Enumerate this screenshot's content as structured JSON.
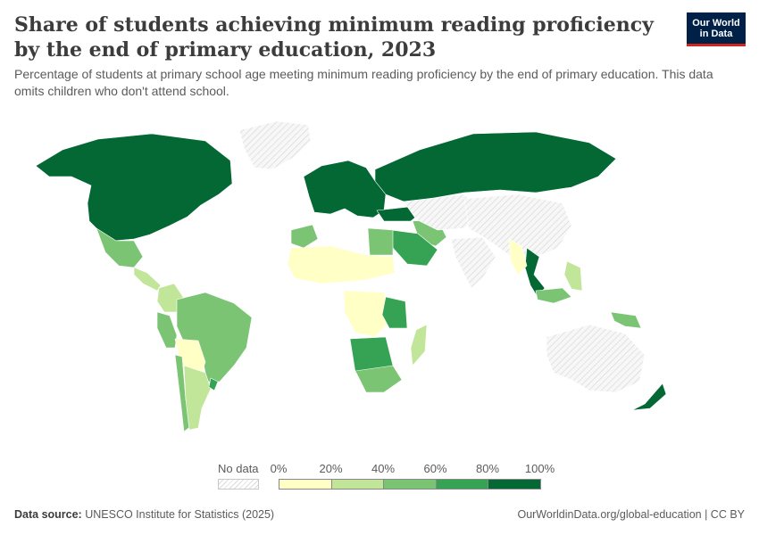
{
  "title": "Share of students achieving minimum reading proficiency by the end of primary education, 2023",
  "subtitle": "Percentage of students at primary school age meeting minimum reading proficiency by the end of primary education. This data omits children who don't attend school.",
  "logo": {
    "line1": "Our World",
    "line2": "in Data"
  },
  "legend": {
    "nodata_label": "No data",
    "ticks": [
      "0%",
      "20%",
      "40%",
      "60%",
      "80%",
      "100%"
    ],
    "bins": [
      {
        "from": 0,
        "to": 20,
        "color": "#ffffc6"
      },
      {
        "from": 20,
        "to": 40,
        "color": "#c2e699"
      },
      {
        "from": 40,
        "to": 60,
        "color": "#7ac474"
      },
      {
        "from": 60,
        "to": 80,
        "color": "#36a254"
      },
      {
        "from": 80,
        "to": 100,
        "color": "#036834"
      }
    ]
  },
  "footer": {
    "source_label": "Data source:",
    "source_text": "UNESCO Institute for Statistics (2025)",
    "url": "OurWorldinData.org/global-education | CC BY"
  },
  "map_data": {
    "type": "choropleth",
    "bins_pct": [
      [
        0,
        20
      ],
      [
        20,
        40
      ],
      [
        40,
        60
      ],
      [
        60,
        80
      ],
      [
        80,
        100
      ]
    ],
    "regions": [
      {
        "name": "North America",
        "bin": 4
      },
      {
        "name": "Greenland",
        "bin": -1
      },
      {
        "name": "Mexico",
        "bin": 2
      },
      {
        "name": "Central America",
        "bin": 1
      },
      {
        "name": "Colombia",
        "bin": 1
      },
      {
        "name": "Brazil",
        "bin": 2
      },
      {
        "name": "Peru",
        "bin": 2
      },
      {
        "name": "Bolivia / Paraguay",
        "bin": 0
      },
      {
        "name": "Chile",
        "bin": 2
      },
      {
        "name": "Argentina",
        "bin": 1
      },
      {
        "name": "Uruguay",
        "bin": 3
      },
      {
        "name": "Europe",
        "bin": 4
      },
      {
        "name": "Russia",
        "bin": 4
      },
      {
        "name": "Turkey",
        "bin": 4
      },
      {
        "name": "Iran",
        "bin": 2
      },
      {
        "name": "Saudi Arabia",
        "bin": 3
      },
      {
        "name": "Kazakhstan / Central Asia",
        "bin": -1
      },
      {
        "name": "China",
        "bin": -1
      },
      {
        "name": "India",
        "bin": -1
      },
      {
        "name": "Vietnam",
        "bin": 4
      },
      {
        "name": "Laos / Cambodia",
        "bin": 0
      },
      {
        "name": "Philippines",
        "bin": 1
      },
      {
        "name": "Malaysia",
        "bin": 2
      },
      {
        "name": "Papua New Guinea",
        "bin": 2
      },
      {
        "name": "Australia",
        "bin": -1
      },
      {
        "name": "New Zealand",
        "bin": 4
      },
      {
        "name": "Sahel",
        "bin": 0
      },
      {
        "name": "DR Congo",
        "bin": 0
      },
      {
        "name": "Tanzania",
        "bin": 3
      },
      {
        "name": "Namibia / Botswana",
        "bin": 3
      },
      {
        "name": "South Africa",
        "bin": 2
      },
      {
        "name": "Madagascar",
        "bin": 1
      },
      {
        "name": "Egypt",
        "bin": 2
      },
      {
        "name": "Morocco",
        "bin": 2
      }
    ]
  }
}
